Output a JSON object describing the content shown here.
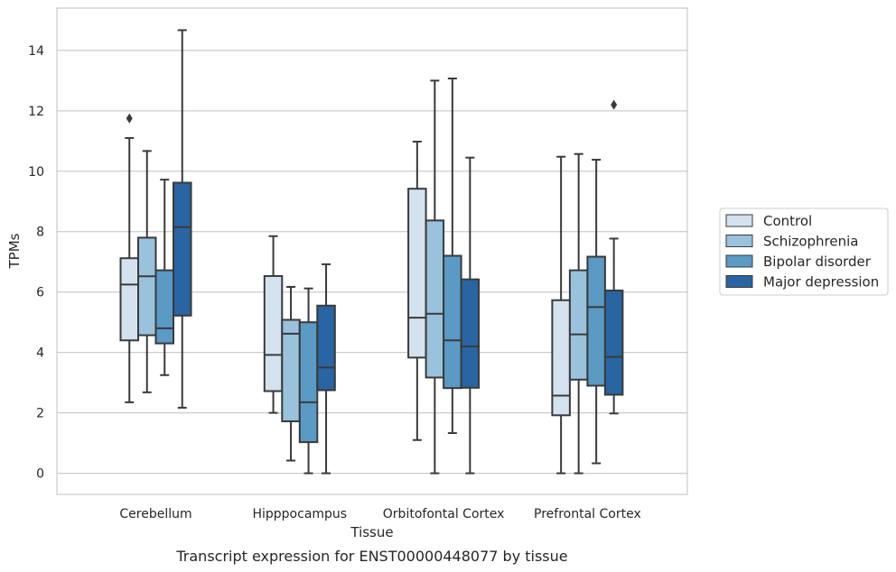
{
  "caption": "Transcript expression for ENST00000448077 by tissue",
  "chart_data": {
    "type": "box",
    "xlabel": "Tissue",
    "ylabel": "TPMs",
    "ylim": [
      -0.7,
      15.4
    ],
    "yticks": [
      0,
      2,
      4,
      6,
      8,
      10,
      12,
      14
    ],
    "grid": "horizontal",
    "legend_position": "right",
    "categories": [
      "Cerebellum",
      "Hipppocampus",
      "Orbitofontal Cortex",
      "Prefrontal Cortex"
    ],
    "series": [
      {
        "name": "Control",
        "color": "#d4e2f0",
        "boxes": [
          {
            "whislo": 2.35,
            "q1": 4.4,
            "med": 6.25,
            "q3": 7.12,
            "whishi": 11.1,
            "fliers": [
              11.75
            ]
          },
          {
            "whislo": 2.0,
            "q1": 2.72,
            "med": 3.92,
            "q3": 6.53,
            "whishi": 7.85,
            "fliers": []
          },
          {
            "whislo": 1.1,
            "q1": 3.83,
            "med": 5.15,
            "q3": 9.42,
            "whishi": 10.98,
            "fliers": []
          },
          {
            "whislo": 0.0,
            "q1": 1.92,
            "med": 2.57,
            "q3": 5.73,
            "whishi": 10.48,
            "fliers": []
          }
        ]
      },
      {
        "name": "Schizophrenia",
        "color": "#9ac2dd",
        "boxes": [
          {
            "whislo": 2.68,
            "q1": 4.57,
            "med": 6.52,
            "q3": 7.8,
            "whishi": 10.67,
            "fliers": []
          },
          {
            "whislo": 0.42,
            "q1": 1.72,
            "med": 4.62,
            "q3": 5.08,
            "whishi": 6.17,
            "fliers": []
          },
          {
            "whislo": 0.0,
            "q1": 3.17,
            "med": 5.28,
            "q3": 8.37,
            "whishi": 13.0,
            "fliers": []
          },
          {
            "whislo": 0.0,
            "q1": 3.1,
            "med": 4.6,
            "q3": 6.72,
            "whishi": 10.57,
            "fliers": []
          }
        ]
      },
      {
        "name": "Bipolar disorder",
        "color": "#5a9ac5",
        "boxes": [
          {
            "whislo": 3.25,
            "q1": 4.3,
            "med": 4.8,
            "q3": 6.72,
            "whishi": 9.72,
            "fliers": []
          },
          {
            "whislo": 0.0,
            "q1": 1.03,
            "med": 2.35,
            "q3": 5.0,
            "whishi": 6.12,
            "fliers": []
          },
          {
            "whislo": 1.33,
            "q1": 2.82,
            "med": 4.4,
            "q3": 7.2,
            "whishi": 13.07,
            "fliers": []
          },
          {
            "whislo": 0.33,
            "q1": 2.9,
            "med": 5.5,
            "q3": 7.17,
            "whishi": 10.38,
            "fliers": []
          }
        ]
      },
      {
        "name": "Major depression",
        "color": "#2865a2",
        "boxes": [
          {
            "whislo": 2.17,
            "q1": 5.22,
            "med": 8.15,
            "q3": 9.62,
            "whishi": 14.67,
            "fliers": []
          },
          {
            "whislo": 0.0,
            "q1": 2.75,
            "med": 3.5,
            "q3": 5.55,
            "whishi": 6.92,
            "fliers": []
          },
          {
            "whislo": 0.0,
            "q1": 2.83,
            "med": 4.2,
            "q3": 6.42,
            "whishi": 10.45,
            "fliers": []
          },
          {
            "whislo": 1.98,
            "q1": 2.6,
            "med": 3.85,
            "q3": 6.05,
            "whishi": 7.77,
            "fliers": [
              12.2
            ]
          }
        ]
      }
    ]
  }
}
